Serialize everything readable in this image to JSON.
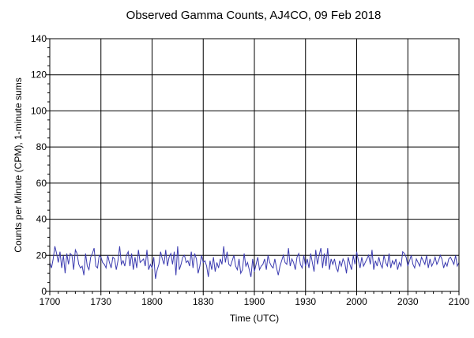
{
  "chart_data": {
    "type": "line",
    "title": "Observed Gamma Counts, AJ4CO, 09 Feb 2018",
    "xlabel": "Time (UTC)",
    "ylabel": "Counts per Minute (CPM), 1-minute sums",
    "x_range_minutes": [
      0,
      240
    ],
    "xticks": [
      {
        "label": "1700",
        "minute": 0
      },
      {
        "label": "1730",
        "minute": 30
      },
      {
        "label": "1800",
        "minute": 60
      },
      {
        "label": "1830",
        "minute": 90
      },
      {
        "label": "1900",
        "minute": 120
      },
      {
        "label": "1930",
        "minute": 150
      },
      {
        "label": "2000",
        "minute": 180
      },
      {
        "label": "2030",
        "minute": 210
      },
      {
        "label": "2100",
        "minute": 240
      }
    ],
    "ylim": [
      0,
      140
    ],
    "yticks": [
      0,
      20,
      40,
      60,
      80,
      100,
      120,
      140
    ],
    "grid": true,
    "series": [
      {
        "color": "#3b3bb0",
        "values": [
          16,
          13,
          18,
          25,
          21,
          16,
          22,
          13,
          20,
          10,
          21,
          15,
          21,
          20,
          12,
          23,
          21,
          15,
          13,
          14,
          9,
          21,
          14,
          12,
          19,
          21,
          24,
          14,
          13,
          20,
          19,
          16,
          15,
          13,
          20,
          16,
          13,
          19,
          18,
          12,
          17,
          25,
          15,
          17,
          14,
          20,
          22,
          14,
          21,
          12,
          19,
          13,
          23,
          16,
          17,
          18,
          14,
          23,
          12,
          15,
          13,
          19,
          7,
          12,
          15,
          22,
          18,
          15,
          23,
          14,
          19,
          21,
          15,
          22,
          9,
          25,
          12,
          15,
          19,
          20,
          16,
          17,
          14,
          22,
          13,
          21,
          18,
          10,
          14,
          20,
          16,
          17,
          14,
          8,
          17,
          12,
          19,
          11,
          16,
          13,
          18,
          15,
          25,
          16,
          22,
          15,
          14,
          17,
          20,
          14,
          12,
          18,
          10,
          12,
          21,
          14,
          16,
          12,
          8,
          18,
          11,
          15,
          19,
          12,
          14,
          15,
          18,
          12,
          20,
          16,
          14,
          13,
          18,
          13,
          9,
          14,
          17,
          20,
          16,
          15,
          24,
          14,
          18,
          16,
          12,
          19,
          21,
          15,
          13,
          20,
          14,
          18,
          13,
          21,
          16,
          11,
          23,
          15,
          20,
          24,
          13,
          21,
          14,
          24,
          12,
          18,
          15,
          18,
          13,
          11,
          17,
          14,
          18,
          16,
          10,
          19,
          15,
          12,
          20,
          15,
          22,
          17,
          13,
          19,
          14,
          16,
          18,
          20,
          15,
          23,
          12,
          17,
          14,
          19,
          15,
          13,
          20,
          16,
          14,
          21,
          13,
          17,
          15,
          18,
          12,
          16,
          14,
          22,
          21,
          19,
          14,
          17,
          20,
          15,
          13,
          18,
          16,
          14,
          19,
          17,
          15,
          20,
          13,
          18,
          14,
          16,
          19,
          15,
          17,
          20,
          18,
          13,
          16,
          14,
          18,
          19,
          17,
          15,
          20,
          14,
          16
        ]
      }
    ]
  }
}
